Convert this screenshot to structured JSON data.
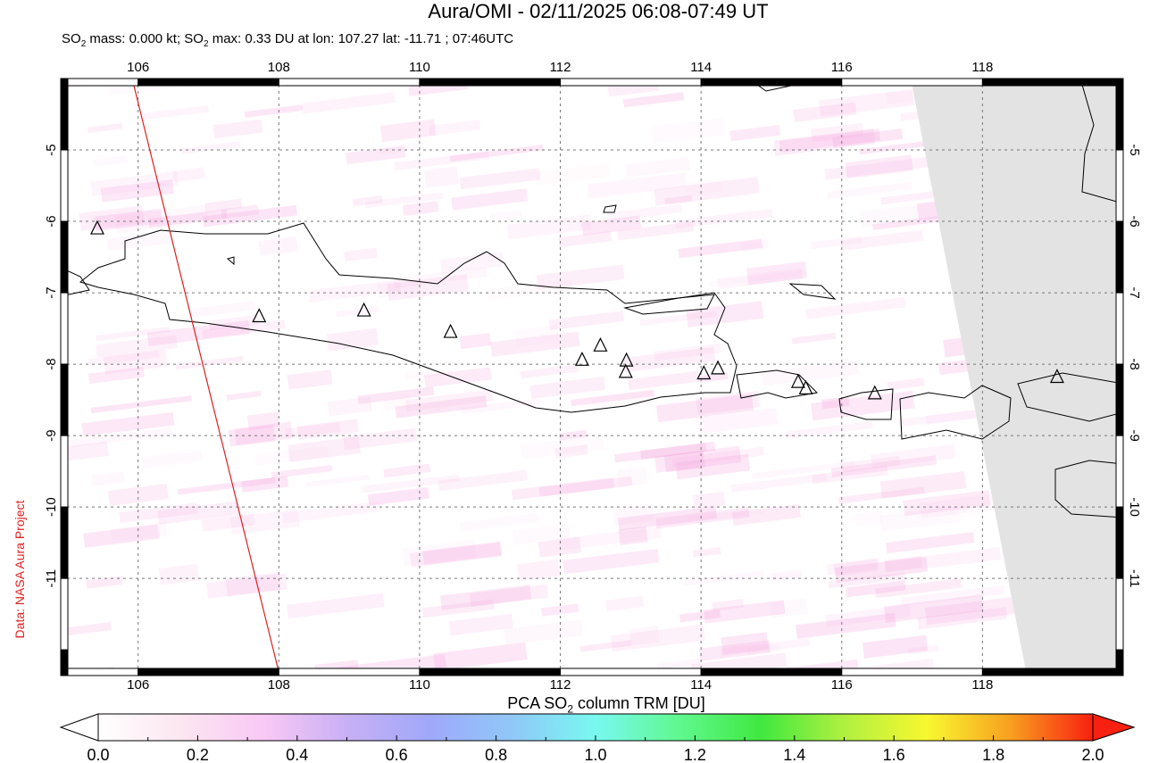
{
  "title": "Aura/OMI - 02/11/2025 06:08-07:49 UT",
  "subtitle": {
    "mass_prefix": "SO",
    "mass_sub": "2",
    "mass_text": " mass: 0.000 kt; SO",
    "max_sub": "2",
    "max_text": " max: 0.33 DU at lon: 107.27 lat: -11.71 ; 07:46UTC"
  },
  "credit": "Data: NASA Aura Project",
  "map": {
    "lon_range": [
      104.9,
      120.0
    ],
    "lat_range": [
      -12.36,
      -4.0
    ],
    "lon_ticks": [
      "106",
      "108",
      "110",
      "112",
      "114",
      "116",
      "118"
    ],
    "lat_ticks": [
      "-5",
      "-6",
      "-7",
      "-8",
      "-9",
      "-10",
      "-11"
    ],
    "grid": true,
    "no_data_color": "#e3e3e3",
    "orbit_track_color": "#e02020",
    "volcanoes": [
      {
        "lon": 105.42,
        "lat": -6.1
      },
      {
        "lon": 107.72,
        "lat": -7.33
      },
      {
        "lon": 109.21,
        "lat": -7.25
      },
      {
        "lon": 110.44,
        "lat": -7.55
      },
      {
        "lon": 112.31,
        "lat": -7.94
      },
      {
        "lon": 112.57,
        "lat": -7.74
      },
      {
        "lon": 112.94,
        "lat": -7.95
      },
      {
        "lon": 112.93,
        "lat": -8.11
      },
      {
        "lon": 114.04,
        "lat": -8.13
      },
      {
        "lon": 114.24,
        "lat": -8.06
      },
      {
        "lon": 115.38,
        "lat": -8.25
      },
      {
        "lon": 115.49,
        "lat": -8.34
      },
      {
        "lon": 116.47,
        "lat": -8.41
      },
      {
        "lon": 119.06,
        "lat": -8.18
      }
    ]
  },
  "colorbar": {
    "title_prefix": "PCA SO",
    "title_sub": "2",
    "title_suffix": " column TRM [DU]",
    "range": [
      0.0,
      2.0
    ],
    "labels": [
      "0.0",
      "0.2",
      "0.4",
      "0.6",
      "0.8",
      "1.0",
      "1.2",
      "1.4",
      "1.6",
      "1.8",
      "2.0"
    ],
    "colors": [
      "#ffffff",
      "#fce6f0",
      "#f9c8f5",
      "#c8b0f5",
      "#a0a8fa",
      "#90c8f8",
      "#78f8f0",
      "#60f890",
      "#40e840",
      "#b0f040",
      "#f8f830",
      "#f8a020",
      "#f82010"
    ]
  }
}
